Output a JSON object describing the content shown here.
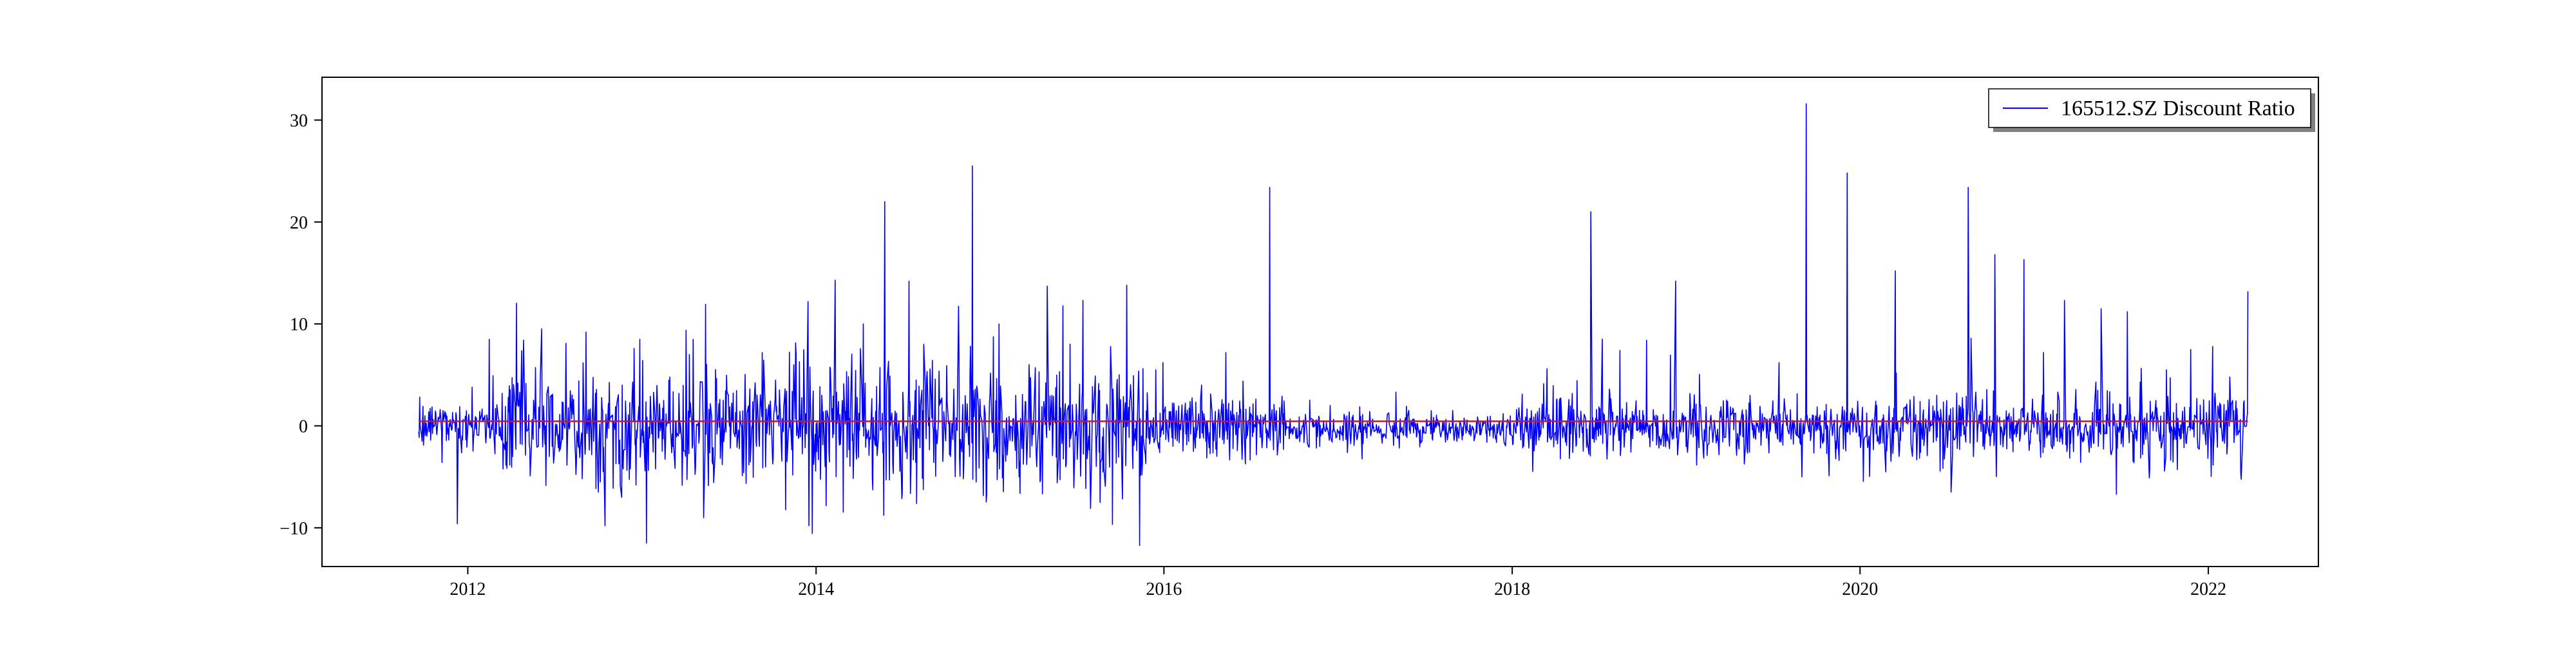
{
  "chart_data": {
    "type": "line",
    "title": "",
    "xlabel": "",
    "ylabel": "",
    "xlim": [
      "2011-03-01",
      "2022-08-20"
    ],
    "ylim": [
      -13.8,
      34.2
    ],
    "x_ticks": [
      "2012-01-01",
      "2014-01-01",
      "2016-01-01",
      "2018-01-01",
      "2020-01-01",
      "2022-01-01"
    ],
    "x_tick_labels": [
      "2012",
      "2014",
      "2016",
      "2018",
      "2020",
      "2022"
    ],
    "y_ticks": [
      -10,
      0,
      10,
      20,
      30
    ],
    "y_tick_labels": [
      "−10",
      "0",
      "10",
      "20",
      "30"
    ],
    "grid": false,
    "legend": {
      "position": "top-right",
      "entries": [
        "165512.SZ Discount Ratio"
      ]
    },
    "series": [
      {
        "name": "165512.SZ Discount Ratio",
        "color": "#0000ff",
        "anchors": [
          {
            "x": "2011-09-20",
            "y": -0.6
          },
          {
            "x": "2011-10-15",
            "y": -1.4
          },
          {
            "x": "2011-11-20",
            "y": -0.8
          },
          {
            "x": "2011-12-10",
            "y": -9.6
          },
          {
            "x": "2011-12-20",
            "y": -1.0
          },
          {
            "x": "2012-01-10",
            "y": 3.8
          },
          {
            "x": "2012-02-15",
            "y": 8.5
          },
          {
            "x": "2012-03-10",
            "y": -1.0
          },
          {
            "x": "2012-04-15",
            "y": 4.2
          },
          {
            "x": "2012-06-20",
            "y": -3.0
          },
          {
            "x": "2012-09-05",
            "y": 9.2
          },
          {
            "x": "2012-10-15",
            "y": -9.8
          },
          {
            "x": "2012-11-20",
            "y": 4.0
          },
          {
            "x": "2012-12-15",
            "y": 7.6
          },
          {
            "x": "2013-01-10",
            "y": -11.5
          },
          {
            "x": "2013-02-15",
            "y": 2.5
          },
          {
            "x": "2013-04-10",
            "y": 7.0
          },
          {
            "x": "2013-05-10",
            "y": -9.0
          },
          {
            "x": "2013-07-01",
            "y": 3.0
          },
          {
            "x": "2013-09-10",
            "y": 7.2
          },
          {
            "x": "2013-11-15",
            "y": 6.0
          },
          {
            "x": "2013-12-15",
            "y": 12.2
          },
          {
            "x": "2014-01-20",
            "y": -4.0
          },
          {
            "x": "2014-02-10",
            "y": 14.3
          },
          {
            "x": "2014-04-10",
            "y": 10.0
          },
          {
            "x": "2014-05-25",
            "y": 22.0
          },
          {
            "x": "2014-06-20",
            "y": -2.0
          },
          {
            "x": "2014-07-15",
            "y": 14.2
          },
          {
            "x": "2014-08-15",
            "y": 8.0
          },
          {
            "x": "2014-10-10",
            "y": -3.0
          },
          {
            "x": "2014-11-25",
            "y": 25.5
          },
          {
            "x": "2014-12-20",
            "y": 2.0
          },
          {
            "x": "2015-01-20",
            "y": 10.0
          },
          {
            "x": "2015-03-20",
            "y": -2.5
          },
          {
            "x": "2015-05-01",
            "y": 13.7
          },
          {
            "x": "2015-06-15",
            "y": 2.0
          },
          {
            "x": "2015-07-15",
            "y": 12.3
          },
          {
            "x": "2015-08-20",
            "y": -7.5
          },
          {
            "x": "2015-10-15",
            "y": 13.8
          },
          {
            "x": "2015-11-15",
            "y": -1.0
          },
          {
            "x": "2015-12-15",
            "y": 5.5
          },
          {
            "x": "2016-01-20",
            "y": -2.0
          },
          {
            "x": "2016-03-20",
            "y": 4.0
          },
          {
            "x": "2016-05-10",
            "y": 7.2
          },
          {
            "x": "2016-07-15",
            "y": 1.0
          },
          {
            "x": "2016-08-10",
            "y": 23.4
          },
          {
            "x": "2016-08-25",
            "y": -0.5
          },
          {
            "x": "2016-10-15",
            "y": -0.8
          },
          {
            "x": "2016-12-15",
            "y": 2.0
          },
          {
            "x": "2017-03-15",
            "y": -0.2
          },
          {
            "x": "2017-07-15",
            "y": 1.5
          },
          {
            "x": "2017-11-15",
            "y": -1.0
          },
          {
            "x": "2018-02-10",
            "y": 1.5
          },
          {
            "x": "2018-03-15",
            "y": 5.6
          },
          {
            "x": "2018-05-15",
            "y": -2.0
          },
          {
            "x": "2018-06-15",
            "y": 21.0
          },
          {
            "x": "2018-07-01",
            "y": -1.0
          },
          {
            "x": "2018-08-15",
            "y": 7.4
          },
          {
            "x": "2018-10-10",
            "y": 8.4
          },
          {
            "x": "2018-11-15",
            "y": -2.0
          },
          {
            "x": "2018-12-10",
            "y": 14.2
          },
          {
            "x": "2019-02-10",
            "y": -1.5
          },
          {
            "x": "2019-05-15",
            "y": 3.0
          },
          {
            "x": "2019-07-15",
            "y": 6.2
          },
          {
            "x": "2019-09-01",
            "y": -5.0
          },
          {
            "x": "2019-09-10",
            "y": 31.6
          },
          {
            "x": "2019-10-01",
            "y": -0.5
          },
          {
            "x": "2019-12-05",
            "y": 24.8
          },
          {
            "x": "2020-01-20",
            "y": -1.0
          },
          {
            "x": "2020-03-15",
            "y": 15.2
          },
          {
            "x": "2020-04-20",
            "y": -3.0
          },
          {
            "x": "2020-06-10",
            "y": 3.0
          },
          {
            "x": "2020-07-10",
            "y": -6.5
          },
          {
            "x": "2020-08-15",
            "y": 23.4
          },
          {
            "x": "2020-09-15",
            "y": -2.0
          },
          {
            "x": "2020-10-10",
            "y": 16.8
          },
          {
            "x": "2020-11-15",
            "y": -1.5
          },
          {
            "x": "2020-12-10",
            "y": 16.3
          },
          {
            "x": "2021-01-20",
            "y": 7.2
          },
          {
            "x": "2021-03-05",
            "y": 12.3
          },
          {
            "x": "2021-05-15",
            "y": -2.0
          },
          {
            "x": "2021-07-15",
            "y": 11.2
          },
          {
            "x": "2021-08-15",
            "y": 1.0
          },
          {
            "x": "2021-10-05",
            "y": 5.5
          },
          {
            "x": "2021-11-01",
            "y": -1.0
          },
          {
            "x": "2021-11-25",
            "y": 7.5
          },
          {
            "x": "2022-01-15",
            "y": 3.2
          },
          {
            "x": "2022-02-15",
            "y": 4.8
          },
          {
            "x": "2022-03-10",
            "y": -4.6
          },
          {
            "x": "2022-03-25",
            "y": 13.2
          }
        ]
      }
    ],
    "reference_line": {
      "y": 0.45,
      "x_start": "2011-09-20",
      "x_end": "2022-03-25",
      "color": "#ff0000"
    }
  }
}
